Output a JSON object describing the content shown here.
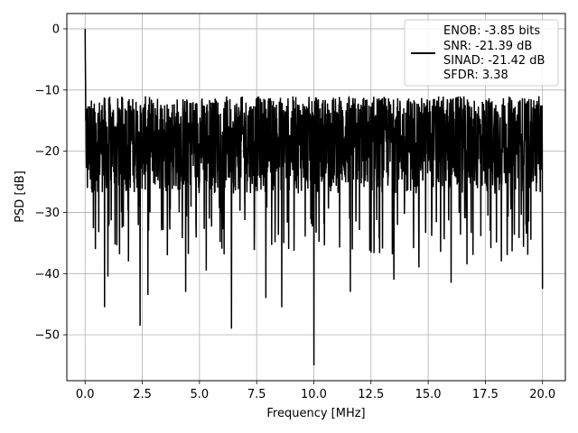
{
  "chart_data": {
    "type": "line",
    "xlabel": "Frequency [MHz]",
    "ylabel": "PSD [dB]",
    "xlim": [
      -0.8,
      21.0
    ],
    "ylim": [
      -57.5,
      2.5
    ],
    "x_ticks": [
      0.0,
      2.5,
      5.0,
      7.5,
      10.0,
      12.5,
      15.0,
      17.5,
      20.0
    ],
    "x_tick_labels": [
      "0.0",
      "2.5",
      "5.0",
      "7.5",
      "10.0",
      "12.5",
      "15.0",
      "17.5",
      "20.0"
    ],
    "y_ticks": [
      0,
      -10,
      -20,
      -30,
      -40,
      -50
    ],
    "y_tick_labels": [
      "0",
      "−10",
      "−20",
      "−30",
      "−40",
      "−50"
    ],
    "grid": true,
    "legend_position": "upper-right",
    "line_color": "#000000",
    "legend": {
      "lines": [
        "ENOB: -3.85 bits",
        "SNR: -21.39 dB",
        "SINAD: -21.42 dB",
        "SFDR: 3.38"
      ]
    },
    "series": [
      {
        "x_range": [
          0.0,
          20.0
        ],
        "num_points": 2048,
        "noise_band": {
          "low": -27,
          "high": -11
        },
        "peak": {
          "x": 0.0,
          "y": 0.0
        },
        "notable_dips": [
          {
            "x": 0.1,
            "y": -26
          },
          {
            "x": 0.45,
            "y": -36
          },
          {
            "x": 0.85,
            "y": -45.5
          },
          {
            "x": 1.0,
            "y": -40.5
          },
          {
            "x": 1.9,
            "y": -38
          },
          {
            "x": 2.4,
            "y": -48.5
          },
          {
            "x": 2.75,
            "y": -43.5
          },
          {
            "x": 3.6,
            "y": -37
          },
          {
            "x": 4.4,
            "y": -43
          },
          {
            "x": 5.3,
            "y": -39.5
          },
          {
            "x": 6.4,
            "y": -49
          },
          {
            "x": 7.9,
            "y": -44
          },
          {
            "x": 8.6,
            "y": -45.5
          },
          {
            "x": 10.0,
            "y": -55
          },
          {
            "x": 11.6,
            "y": -43
          },
          {
            "x": 13.5,
            "y": -41
          },
          {
            "x": 14.6,
            "y": -39
          },
          {
            "x": 16.0,
            "y": -41.5
          },
          {
            "x": 16.7,
            "y": -38.5
          },
          {
            "x": 18.2,
            "y": -38
          },
          {
            "x": 20.0,
            "y": -42.5
          }
        ]
      }
    ]
  }
}
